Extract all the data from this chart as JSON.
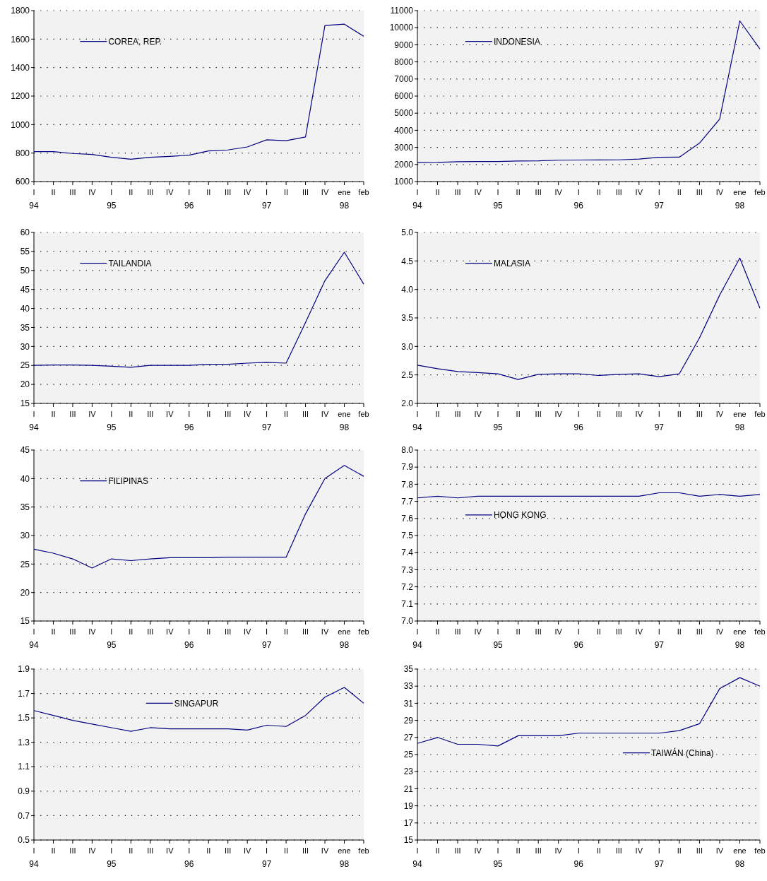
{
  "chart_data": [
    {
      "type": "line",
      "categories": [
        "I\n94",
        "II",
        "III",
        "IV",
        "I\n95",
        "II",
        "III",
        "IV",
        "I\n96",
        "II",
        "III",
        "IV",
        "I\n97",
        "II",
        "III",
        "IV",
        "ene\n98",
        "feb"
      ],
      "series": [
        {
          "name": "COREA, REP.",
          "color": "#000080",
          "values": [
            810,
            810,
            797,
            790,
            770,
            757,
            770,
            777,
            785,
            815,
            822,
            843,
            893,
            887,
            913,
            1695,
            1705,
            1620
          ]
        }
      ],
      "ylim": [
        600,
        1800
      ],
      "yticks": [
        600,
        800,
        1000,
        1200,
        1400,
        1600,
        1800
      ],
      "grid": "y",
      "legend": "top left"
    },
    {
      "type": "line",
      "categories": [
        "I\n94",
        "II",
        "III",
        "IV",
        "I\n95",
        "II",
        "III",
        "IV",
        "I\n96",
        "II",
        "III",
        "IV",
        "I\n97",
        "II",
        "III",
        "IV",
        "ene\n98",
        "feb"
      ],
      "series": [
        {
          "name": "INDONESIA",
          "color": "#000080",
          "values": [
            2110,
            2120,
            2160,
            2170,
            2170,
            2200,
            2210,
            2250,
            2260,
            2265,
            2270,
            2320,
            2420,
            2430,
            3250,
            4650,
            10400,
            8750
          ]
        }
      ],
      "ylim": [
        1000,
        11000
      ],
      "yticks": [
        1000,
        2000,
        3000,
        4000,
        5000,
        6000,
        7000,
        8000,
        9000,
        10000,
        11000
      ],
      "grid": "y",
      "legend": "top left"
    },
    {
      "type": "line",
      "categories": [
        "I\n94",
        "II",
        "III",
        "IV",
        "I\n95",
        "II",
        "III",
        "IV",
        "I\n96",
        "II",
        "III",
        "IV",
        "I\n97",
        "II",
        "III",
        "IV",
        "ene\n98",
        "feb"
      ],
      "series": [
        {
          "name": "TAILANDIA",
          "color": "#000080",
          "values": [
            25.0,
            25.1,
            25.1,
            25.0,
            24.8,
            24.5,
            25.0,
            25.0,
            25.0,
            25.3,
            25.3,
            25.6,
            25.8,
            25.6,
            36.3,
            47.3,
            54.8,
            46.4
          ]
        }
      ],
      "ylim": [
        15,
        60
      ],
      "yticks": [
        15,
        20,
        25,
        30,
        35,
        40,
        45,
        50,
        55,
        60
      ],
      "grid": "y",
      "legend": "top left"
    },
    {
      "type": "line",
      "categories": [
        "I\n94",
        "II",
        "III",
        "IV",
        "I\n95",
        "II",
        "III",
        "IV",
        "I\n96",
        "II",
        "III",
        "IV",
        "I\n97",
        "II",
        "III",
        "IV",
        "ene\n98",
        "feb"
      ],
      "series": [
        {
          "name": "MALASIA",
          "color": "#000080",
          "values": [
            2.67,
            2.61,
            2.56,
            2.54,
            2.52,
            2.42,
            2.51,
            2.52,
            2.52,
            2.49,
            2.51,
            2.52,
            2.47,
            2.52,
            3.15,
            3.9,
            4.55,
            3.67
          ]
        }
      ],
      "ylim": [
        2,
        5
      ],
      "yticks": [
        {
          "value": 2,
          "label": "2.0"
        },
        2.5,
        {
          "value": 3,
          "label": "3.0"
        },
        3.5,
        {
          "value": 4,
          "label": "4.0"
        },
        4.5,
        {
          "value": 5,
          "label": "5.0"
        }
      ],
      "grid": "y",
      "legend": "top left"
    },
    {
      "type": "line",
      "categories": [
        "I\n94",
        "II",
        "III",
        "IV",
        "I\n95",
        "II",
        "III",
        "IV",
        "I\n96",
        "II",
        "III",
        "IV",
        "I\n97",
        "II",
        "III",
        "IV",
        "ene\n98",
        "feb"
      ],
      "series": [
        {
          "name": "FILIPINAS",
          "color": "#000080",
          "values": [
            27.6,
            26.9,
            25.9,
            24.3,
            25.9,
            25.6,
            25.9,
            26.1,
            26.1,
            26.1,
            26.2,
            26.2,
            26.2,
            26.2,
            33.8,
            40.0,
            42.3,
            40.4
          ]
        }
      ],
      "ylim": [
        15,
        45
      ],
      "yticks": [
        15,
        20,
        25,
        30,
        35,
        40,
        45
      ],
      "grid": "y",
      "legend": "top left"
    },
    {
      "type": "line",
      "categories": [
        "I\n94",
        "II",
        "III",
        "IV",
        "I\n95",
        "II",
        "III",
        "IV",
        "I\n96",
        "II",
        "III",
        "IV",
        "I\n97",
        "II",
        "III",
        "IV",
        "ene\n98",
        "feb"
      ],
      "series": [
        {
          "name": "HONG KONG",
          "color": "#000080",
          "values": [
            7.72,
            7.73,
            7.72,
            7.73,
            7.73,
            7.73,
            7.73,
            7.73,
            7.73,
            7.73,
            7.73,
            7.73,
            7.75,
            7.75,
            7.73,
            7.74,
            7.73,
            7.74
          ]
        }
      ],
      "ylim": [
        7,
        8
      ],
      "yticks": [
        {
          "value": 7,
          "label": "7.0"
        },
        7.1,
        7.2,
        7.3,
        7.4,
        7.5,
        7.6,
        7.7,
        7.8,
        7.9,
        {
          "value": 8,
          "label": "8.0"
        }
      ],
      "grid": "y",
      "legend": "left"
    },
    {
      "type": "line",
      "categories": [
        "I\n94",
        "II",
        "III",
        "IV",
        "I\n95",
        "II",
        "III",
        "IV",
        "I\n96",
        "II",
        "III",
        "IV",
        "I\n97",
        "II",
        "III",
        "IV",
        "ene\n98",
        "feb"
      ],
      "series": [
        {
          "name": "SINGAPUR",
          "color": "#000080",
          "values": [
            1.56,
            1.52,
            1.48,
            1.45,
            1.42,
            1.39,
            1.42,
            1.41,
            1.41,
            1.41,
            1.41,
            1.4,
            1.44,
            1.43,
            1.52,
            1.67,
            1.75,
            1.62
          ]
        }
      ],
      "ylim": [
        0.5,
        1.9
      ],
      "yticks": [
        0.5,
        0.7,
        0.9,
        1.1,
        1.3,
        1.5,
        1.7,
        1.9
      ],
      "grid": "y",
      "legend": "top"
    },
    {
      "type": "line",
      "categories": [
        "I\n94",
        "II",
        "III",
        "IV",
        "I\n95",
        "II",
        "III",
        "IV",
        "I\n96",
        "II",
        "III",
        "IV",
        "I\n97",
        "II",
        "III",
        "IV",
        "ene\n98",
        "feb"
      ],
      "series": [
        {
          "name": "TAIWÁN (China)",
          "color": "#000080",
          "values": [
            26.3,
            27.0,
            26.2,
            26.2,
            26.0,
            27.2,
            27.2,
            27.2,
            27.5,
            27.5,
            27.5,
            27.5,
            27.5,
            27.8,
            28.6,
            32.7,
            34.0,
            33.0
          ]
        }
      ],
      "ylim": [
        15,
        35
      ],
      "yticks": [
        15,
        17,
        19,
        21,
        23,
        25,
        27,
        29,
        31,
        33,
        35
      ],
      "grid": "y",
      "legend": "right"
    }
  ]
}
